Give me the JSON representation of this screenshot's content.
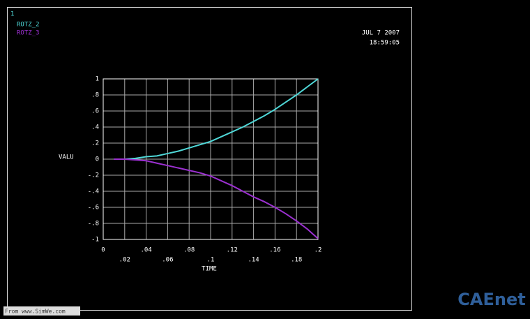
{
  "chart_data": {
    "type": "line",
    "window_label": "1",
    "date": "JUL  7 2007",
    "time": "18:59:05",
    "xlabel": "TIME",
    "ylabel": "VALU",
    "watermark": "CAEnet",
    "source_note": "From www.SimWe.com",
    "x": [
      0.01,
      0.02,
      0.03,
      0.04,
      0.05,
      0.06,
      0.07,
      0.08,
      0.09,
      0.1,
      0.11,
      0.12,
      0.13,
      0.14,
      0.15,
      0.16,
      0.17,
      0.18,
      0.19,
      0.2
    ],
    "series": [
      {
        "name": "ROTZ_2",
        "color": "#4fd8d8",
        "values": [
          0,
          0,
          0.01,
          0.03,
          0.04,
          0.07,
          0.1,
          0.14,
          0.18,
          0.22,
          0.28,
          0.34,
          0.4,
          0.47,
          0.54,
          0.62,
          0.71,
          0.8,
          0.9,
          1
        ]
      },
      {
        "name": "ROTZ_3",
        "color": "#9b30d0",
        "values": [
          0,
          0,
          -0.01,
          -0.02,
          -0.05,
          -0.08,
          -0.11,
          -0.14,
          -0.17,
          -0.21,
          -0.27,
          -0.33,
          -0.4,
          -0.47,
          -0.53,
          -0.6,
          -0.68,
          -0.77,
          -0.87,
          -0.99
        ]
      }
    ],
    "xlim": [
      0,
      0.2
    ],
    "ylim": [
      -1,
      1
    ],
    "xticks": [
      0,
      {
        "value": 0.02,
        "label": ".02"
      },
      {
        "value": 0.04,
        "label": ".04"
      },
      {
        "value": 0.06,
        "label": ".06"
      },
      {
        "value": 0.08,
        "label": ".08"
      },
      {
        "value": 0.1,
        "label": ".1"
      },
      {
        "value": 0.12,
        "label": ".12"
      },
      {
        "value": 0.14,
        "label": ".14"
      },
      {
        "value": 0.16,
        "label": ".16"
      },
      {
        "value": 0.18,
        "label": ".18"
      },
      {
        "value": 0.2,
        "label": ".2"
      }
    ],
    "yticks": [
      -1,
      {
        "value": -0.8,
        "label": "-.8"
      },
      {
        "value": -0.6,
        "label": "-.6"
      },
      {
        "value": -0.4,
        "label": "-.4"
      },
      {
        "value": -0.2,
        "label": "-.2"
      },
      0,
      {
        "value": 0.2,
        "label": ".2"
      },
      {
        "value": 0.4,
        "label": ".4"
      },
      {
        "value": 0.6,
        "label": ".6"
      },
      {
        "value": 0.8,
        "label": ".8"
      },
      1
    ],
    "grid": true
  }
}
